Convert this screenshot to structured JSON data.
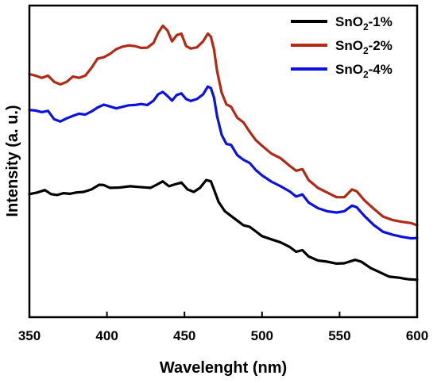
{
  "chart_data": {
    "type": "line",
    "xlabel": "Wavelenght (nm)",
    "ylabel": "Intensity (a. u.)",
    "xlim": [
      350,
      600
    ],
    "ylim": [
      0,
      100
    ],
    "x_ticks": [
      350,
      400,
      450,
      500,
      550,
      600
    ],
    "y_ticks": [],
    "grid": false,
    "legend_position": "top-right",
    "series": [
      {
        "name": "SnO₂-1%",
        "legend_base": "SnO",
        "legend_sub": "2",
        "legend_suffix": "-1%",
        "color": "#000000",
        "points": [
          [
            350,
            39.5
          ],
          [
            355,
            40
          ],
          [
            360,
            40.8
          ],
          [
            364,
            39.5
          ],
          [
            368,
            39.2
          ],
          [
            372,
            39.8
          ],
          [
            376,
            39.6
          ],
          [
            380,
            40
          ],
          [
            385,
            40.2
          ],
          [
            390,
            41
          ],
          [
            395,
            42.5
          ],
          [
            398,
            42.4
          ],
          [
            402,
            41.5
          ],
          [
            408,
            41.6
          ],
          [
            415,
            42
          ],
          [
            420,
            41.8
          ],
          [
            428,
            41.5
          ],
          [
            432,
            42.5
          ],
          [
            436,
            43.6
          ],
          [
            440,
            42
          ],
          [
            443,
            42.5
          ],
          [
            448,
            43.2
          ],
          [
            452,
            41
          ],
          [
            456,
            40.2
          ],
          [
            460,
            41.5
          ],
          [
            464,
            44
          ],
          [
            467,
            43.6
          ],
          [
            469,
            41
          ],
          [
            472,
            37
          ],
          [
            476,
            34
          ],
          [
            480,
            32.5
          ],
          [
            484,
            31
          ],
          [
            488,
            29.5
          ],
          [
            492,
            29
          ],
          [
            496,
            27.5
          ],
          [
            500,
            26
          ],
          [
            506,
            25
          ],
          [
            512,
            24
          ],
          [
            518,
            22.5
          ],
          [
            522,
            21
          ],
          [
            526,
            21.5
          ],
          [
            530,
            19.5
          ],
          [
            536,
            18.2
          ],
          [
            542,
            17.8
          ],
          [
            548,
            17.2
          ],
          [
            553,
            17.3
          ],
          [
            560,
            18.4
          ],
          [
            564,
            17.8
          ],
          [
            570,
            15.8
          ],
          [
            576,
            14.4
          ],
          [
            582,
            13
          ],
          [
            588,
            12.7
          ],
          [
            594,
            12.2
          ],
          [
            600,
            12
          ]
        ]
      },
      {
        "name": "SnO₂-2%",
        "legend_base": "SnO",
        "legend_sub": "2",
        "legend_suffix": "-2%",
        "color": "#b22a16",
        "points": [
          [
            350,
            78
          ],
          [
            354,
            77.5
          ],
          [
            358,
            76.8
          ],
          [
            362,
            77.5
          ],
          [
            366,
            75.5
          ],
          [
            370,
            74.7
          ],
          [
            374,
            75.5
          ],
          [
            378,
            77.2
          ],
          [
            382,
            76.8
          ],
          [
            386,
            77.5
          ],
          [
            390,
            80
          ],
          [
            394,
            83
          ],
          [
            398,
            83.4
          ],
          [
            402,
            84.5
          ],
          [
            406,
            86
          ],
          [
            410,
            86.8
          ],
          [
            414,
            87.2
          ],
          [
            418,
            87
          ],
          [
            422,
            86.4
          ],
          [
            426,
            86.5
          ],
          [
            430,
            88
          ],
          [
            433,
            91.2
          ],
          [
            436,
            93.5
          ],
          [
            439,
            92
          ],
          [
            442,
            88.5
          ],
          [
            445,
            90.5
          ],
          [
            448,
            91
          ],
          [
            451,
            87
          ],
          [
            454,
            86.2
          ],
          [
            458,
            86.6
          ],
          [
            462,
            88.5
          ],
          [
            465,
            91
          ],
          [
            467,
            90
          ],
          [
            469,
            86
          ],
          [
            471,
            79
          ],
          [
            474,
            72
          ],
          [
            477,
            68.3
          ],
          [
            480,
            67.5
          ],
          [
            484,
            64
          ],
          [
            488,
            62.5
          ],
          [
            492,
            59.5
          ],
          [
            496,
            56.8
          ],
          [
            500,
            55
          ],
          [
            506,
            52.5
          ],
          [
            512,
            51
          ],
          [
            518,
            48.5
          ],
          [
            522,
            47
          ],
          [
            526,
            47.5
          ],
          [
            530,
            44
          ],
          [
            536,
            41.5
          ],
          [
            542,
            40
          ],
          [
            548,
            38.5
          ],
          [
            553,
            38.5
          ],
          [
            558,
            41
          ],
          [
            561,
            40.4
          ],
          [
            566,
            37.5
          ],
          [
            572,
            34.8
          ],
          [
            578,
            32.3
          ],
          [
            584,
            31.2
          ],
          [
            590,
            30.6
          ],
          [
            596,
            30.2
          ],
          [
            600,
            29.5
          ]
        ]
      },
      {
        "name": "SnO₂-4%",
        "legend_base": "SnO",
        "legend_sub": "2",
        "legend_suffix": "-4%",
        "color": "#0a11e0",
        "points": [
          [
            350,
            66.5
          ],
          [
            354,
            66.3
          ],
          [
            358,
            65.8
          ],
          [
            362,
            66.2
          ],
          [
            366,
            63.5
          ],
          [
            370,
            62.8
          ],
          [
            374,
            63.8
          ],
          [
            378,
            64.6
          ],
          [
            382,
            65.3
          ],
          [
            386,
            65
          ],
          [
            390,
            66
          ],
          [
            394,
            67.3
          ],
          [
            398,
            68.2
          ],
          [
            402,
            67.6
          ],
          [
            406,
            67
          ],
          [
            410,
            67.5
          ],
          [
            414,
            68
          ],
          [
            418,
            68.1
          ],
          [
            422,
            68.4
          ],
          [
            426,
            68.1
          ],
          [
            430,
            69.5
          ],
          [
            433,
            71.5
          ],
          [
            436,
            72.3
          ],
          [
            439,
            71
          ],
          [
            442,
            69.5
          ],
          [
            445,
            71.3
          ],
          [
            448,
            71.8
          ],
          [
            451,
            70
          ],
          [
            454,
            69.4
          ],
          [
            458,
            70
          ],
          [
            462,
            71.5
          ],
          [
            465,
            74
          ],
          [
            467,
            73.5
          ],
          [
            469,
            70.5
          ],
          [
            471,
            64.5
          ],
          [
            474,
            58.5
          ],
          [
            477,
            55.6
          ],
          [
            480,
            55.3
          ],
          [
            484,
            52
          ],
          [
            488,
            50.5
          ],
          [
            492,
            49.5
          ],
          [
            496,
            47.2
          ],
          [
            500,
            45.5
          ],
          [
            506,
            43.5
          ],
          [
            512,
            42
          ],
          [
            518,
            40.3
          ],
          [
            522,
            38.7
          ],
          [
            526,
            39.4
          ],
          [
            530,
            36.8
          ],
          [
            536,
            35
          ],
          [
            542,
            34
          ],
          [
            548,
            33.6
          ],
          [
            553,
            34
          ],
          [
            558,
            35.8
          ],
          [
            561,
            35.3
          ],
          [
            566,
            32.5
          ],
          [
            572,
            29.6
          ],
          [
            578,
            27.4
          ],
          [
            584,
            26.5
          ],
          [
            590,
            25.8
          ],
          [
            596,
            25.3
          ],
          [
            600,
            25.4
          ]
        ]
      }
    ]
  }
}
